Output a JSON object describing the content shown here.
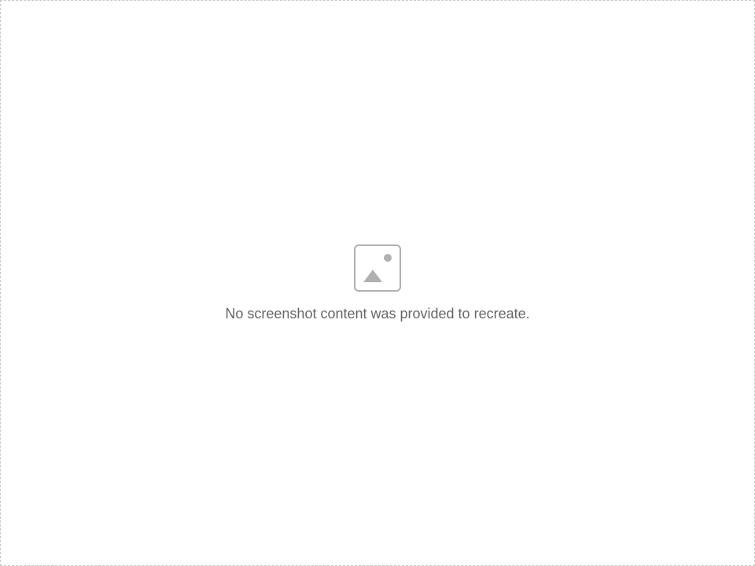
{
  "placeholder": {
    "message": "No screenshot content was provided to recreate."
  }
}
